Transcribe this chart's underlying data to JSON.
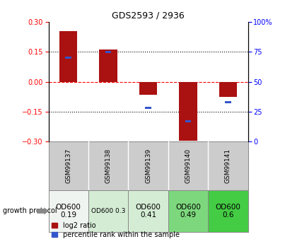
{
  "title": "GDS2593 / 2936",
  "samples": [
    "GSM99137",
    "GSM99138",
    "GSM99139",
    "GSM99140",
    "GSM99141"
  ],
  "log2_ratio": [
    0.255,
    0.162,
    -0.065,
    -0.295,
    -0.075
  ],
  "percentile_rank": [
    70,
    75,
    28,
    17,
    33
  ],
  "bar_color": "#aa1111",
  "pct_color": "#3355cc",
  "ylim_left": [
    -0.3,
    0.3
  ],
  "ylim_right": [
    0,
    100
  ],
  "yticks_left": [
    -0.3,
    -0.15,
    0,
    0.15,
    0.3
  ],
  "yticks_right": [
    0,
    25,
    50,
    75,
    100
  ],
  "protocol_labels": [
    "OD600\n0.19",
    "OD600 0.3",
    "OD600\n0.41",
    "OD600\n0.49",
    "OD600\n0.6"
  ],
  "protocol_colors": [
    "#f0f4f0",
    "#d4ecd4",
    "#d4ecd4",
    "#7dd87d",
    "#44cc44"
  ],
  "protocol_fontsize": [
    7.5,
    6.5,
    7.5,
    7.5,
    7.5
  ],
  "growth_protocol_label": "growth protocol",
  "legend_log2": "log2 ratio",
  "legend_pct": "percentile rank within the sample",
  "bar_width": 0.45,
  "pct_bar_width": 0.15,
  "pct_bar_height": 0.012
}
